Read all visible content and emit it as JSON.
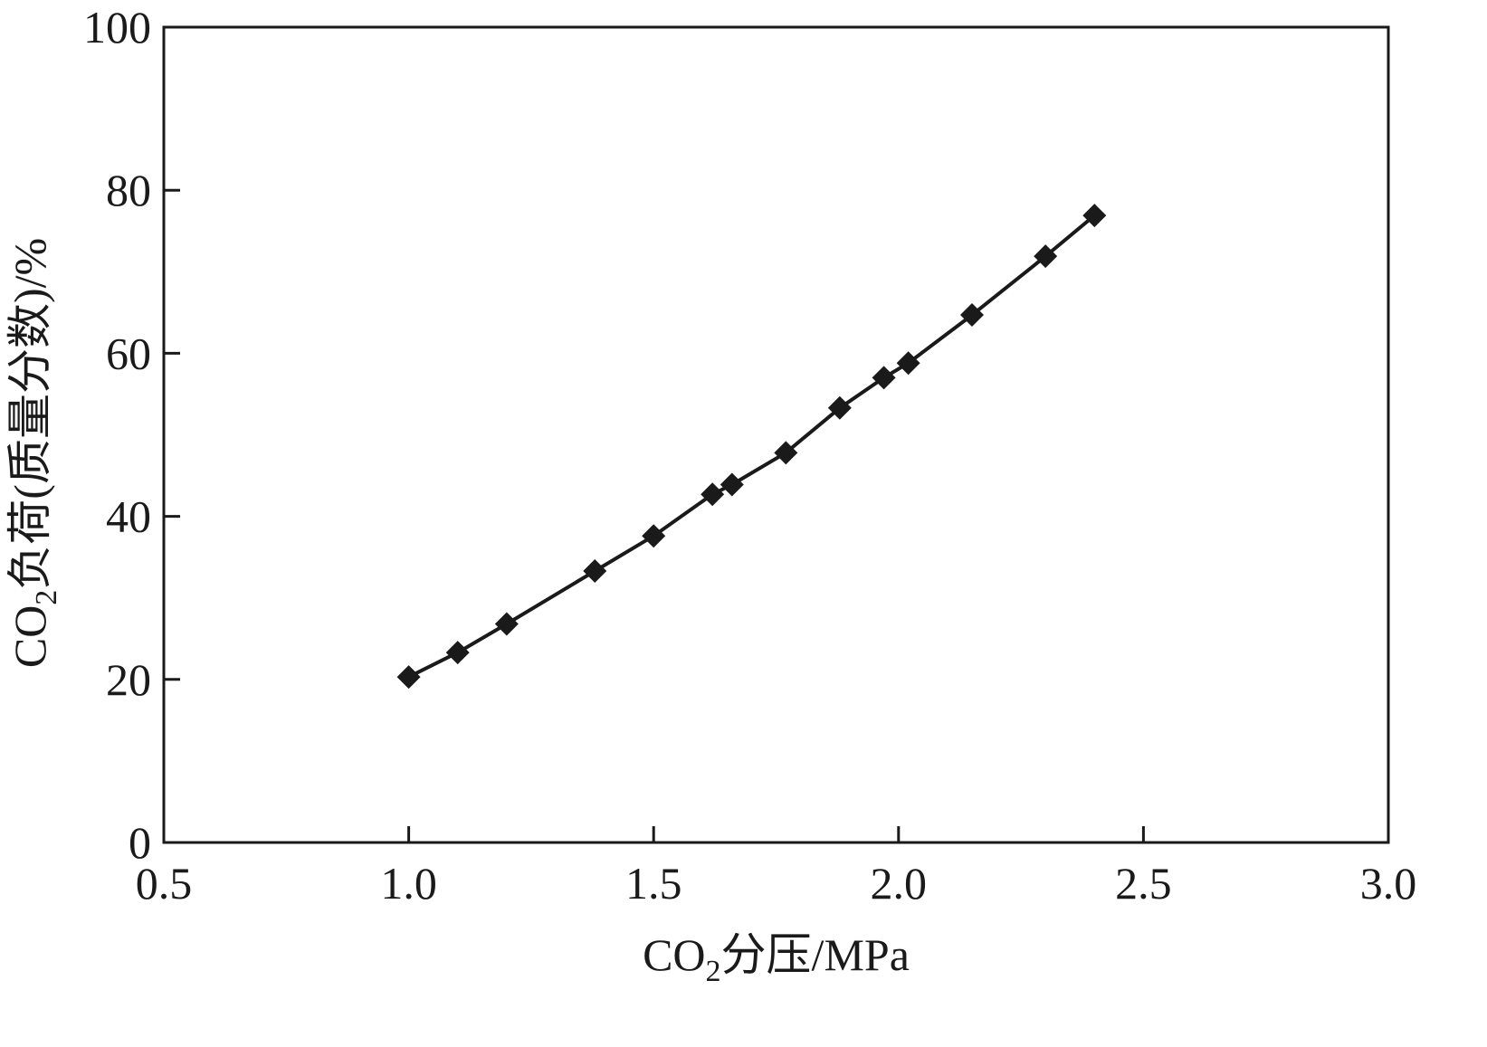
{
  "chart_data": {
    "type": "line",
    "xlabel": {
      "prefix": "CO",
      "subscript": "2",
      "suffix": "分压/MPa"
    },
    "ylabel": {
      "prefix": "CO",
      "subscript": "2",
      "suffix": "负荷(质量分数)/%"
    },
    "xlim": [
      0.5,
      3.0
    ],
    "ylim": [
      0,
      100
    ],
    "xticks": [
      0.5,
      1.0,
      1.5,
      2.0,
      2.5,
      3.0
    ],
    "xtick_labels": [
      "0.5",
      "1.0",
      "1.5",
      "2.0",
      "2.5",
      "3.0"
    ],
    "yticks": [
      0,
      20,
      40,
      60,
      80,
      100
    ],
    "ytick_labels": [
      "0",
      "20",
      "40",
      "60",
      "80",
      "100"
    ],
    "grid": false,
    "series": [
      {
        "marker": "diamond",
        "color": "#1a1a1a",
        "x": [
          1.0,
          1.1,
          1.2,
          1.38,
          1.5,
          1.62,
          1.66,
          1.77,
          1.88,
          1.97,
          2.02,
          2.15,
          2.3,
          2.4
        ],
        "y": [
          20.3,
          23.3,
          26.8,
          33.3,
          37.6,
          42.7,
          43.9,
          47.8,
          53.3,
          57.0,
          58.8,
          64.7,
          71.9,
          76.9
        ]
      }
    ]
  }
}
